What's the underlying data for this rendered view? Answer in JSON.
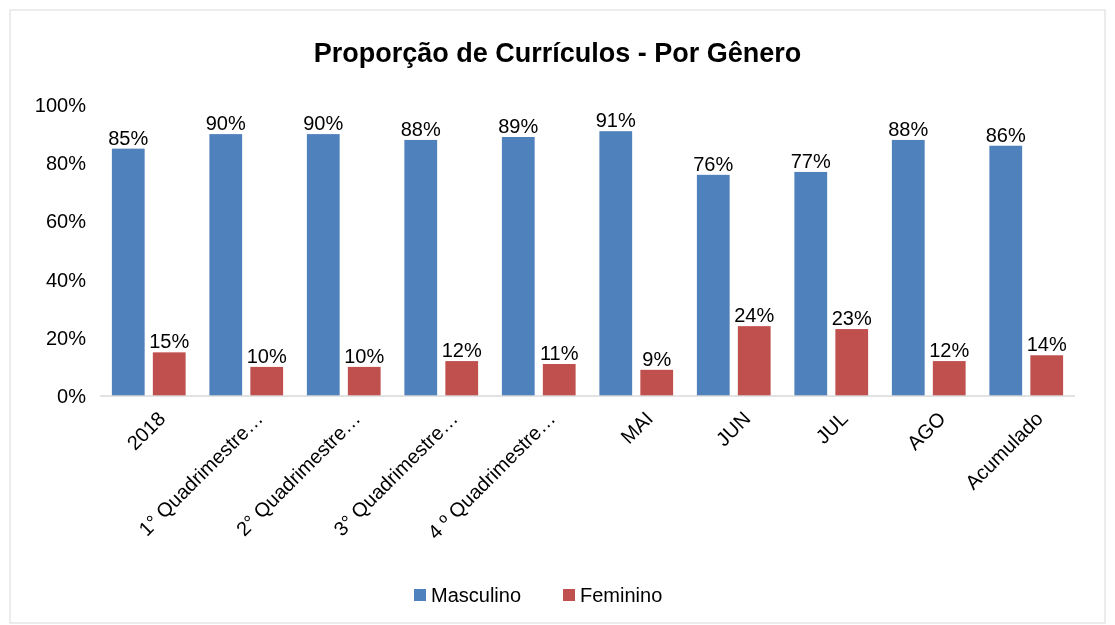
{
  "chart_data": {
    "type": "bar",
    "title": "Proporção de Currículos - Por Gênero",
    "categories": [
      "2018",
      "1° Quadrimestre…",
      "2° Quadrimestre…",
      "3° Quadrimestre…",
      "4 º Quadrimestre…",
      "MAI",
      "JUN",
      "JUL",
      "AGO",
      "Acumulado"
    ],
    "series": [
      {
        "name": "Masculino",
        "color": "#4f81bd",
        "values": [
          85,
          90,
          90,
          88,
          89,
          91,
          76,
          77,
          88,
          86
        ],
        "value_labels": [
          "85%",
          "90%",
          "90%",
          "88%",
          "89%",
          "91%",
          "76%",
          "77%",
          "88%",
          "86%"
        ]
      },
      {
        "name": "Feminino",
        "color": "#c0504d",
        "values": [
          15,
          10,
          10,
          12,
          11,
          9,
          24,
          23,
          12,
          14
        ],
        "value_labels": [
          "15%",
          "10%",
          "10%",
          "12%",
          "11%",
          "9%",
          "24%",
          "23%",
          "12%",
          "14%"
        ]
      }
    ],
    "ylim": [
      0,
      100
    ],
    "yticks": [
      {
        "value": 0,
        "label": "0%"
      },
      {
        "value": 20,
        "label": "20%"
      },
      {
        "value": 40,
        "label": "40%"
      },
      {
        "value": 60,
        "label": "60%"
      },
      {
        "value": 80,
        "label": "80%"
      },
      {
        "value": 100,
        "label": "100%"
      }
    ],
    "grid": false,
    "legend": "bottom"
  }
}
